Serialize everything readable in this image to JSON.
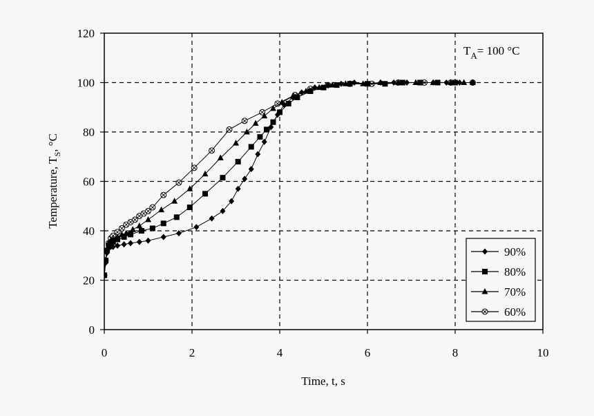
{
  "chart_data": {
    "type": "line",
    "title": "",
    "xlabel": "Time, t, s",
    "ylabel": "Temperature, T",
    "ylabel_sub": "S",
    "ylabel_unit": ", °C",
    "xlim": [
      0,
      10
    ],
    "ylim": [
      0,
      120
    ],
    "xticks": [
      0,
      2,
      4,
      6,
      8,
      10
    ],
    "yticks": [
      0,
      20,
      40,
      60,
      80,
      100,
      120
    ],
    "grid": true,
    "annotation": {
      "main": "T",
      "sub": "A",
      "rest": "= 100 °C"
    },
    "legend_position": "lower right",
    "series": [
      {
        "name": "90%",
        "marker": "diamond",
        "x": [
          0,
          0.03,
          0.06,
          0.1,
          0.15,
          0.2,
          0.3,
          0.45,
          0.6,
          0.8,
          1.0,
          1.35,
          1.7,
          2.1,
          2.45,
          2.7,
          2.9,
          3.05,
          3.2,
          3.35,
          3.5,
          3.65,
          3.8,
          3.95,
          4.1,
          4.3,
          4.5,
          4.8,
          5.1,
          5.4,
          5.7,
          6.0,
          6.3,
          6.6,
          6.9,
          7.2,
          7.5,
          7.8,
          8.1,
          8.4
        ],
        "y": [
          22,
          27,
          31,
          33,
          33.5,
          33.5,
          34,
          34.5,
          35,
          35.5,
          36,
          37.5,
          39,
          41.5,
          45,
          48,
          52,
          57,
          61,
          65,
          71,
          76,
          82,
          87,
          91,
          94,
          96,
          98,
          99,
          99.5,
          100,
          99.5,
          100,
          100,
          100,
          100,
          100,
          100,
          100,
          100
        ]
      },
      {
        "name": "80%",
        "marker": "square",
        "x": [
          0,
          0.03,
          0.06,
          0.1,
          0.15,
          0.2,
          0.3,
          0.45,
          0.6,
          0.85,
          1.1,
          1.35,
          1.65,
          1.95,
          2.3,
          2.7,
          3.05,
          3.35,
          3.55,
          3.7,
          3.85,
          4.0,
          4.2,
          4.4,
          4.7,
          5.0,
          5.3,
          5.6,
          6.0,
          6.4,
          6.8,
          7.2,
          7.6,
          8.0
        ],
        "y": [
          22,
          28,
          32,
          34,
          35,
          35.5,
          36.5,
          37.5,
          38.5,
          40,
          41,
          43,
          45.5,
          49.5,
          55,
          61.5,
          68,
          74,
          78,
          81,
          84,
          88,
          91.5,
          94,
          96.5,
          98,
          99,
          99.5,
          99.5,
          99.5,
          100,
          100,
          100,
          100
        ]
      },
      {
        "name": "70%",
        "marker": "triangle",
        "x": [
          0,
          0.03,
          0.06,
          0.1,
          0.15,
          0.2,
          0.3,
          0.4,
          0.5,
          0.65,
          0.8,
          1.0,
          1.3,
          1.6,
          1.95,
          2.3,
          2.65,
          3.0,
          3.25,
          3.45,
          3.65,
          3.85,
          4.05,
          4.3,
          4.6,
          4.9,
          5.2,
          5.5,
          5.9,
          6.3,
          6.7,
          7.1,
          7.5,
          7.9,
          8.2,
          8.4
        ],
        "y": [
          22,
          28,
          32,
          35,
          36,
          36.5,
          37.5,
          38.5,
          39,
          40.5,
          42,
          44.5,
          48.5,
          52,
          57,
          63,
          69.5,
          75.5,
          80,
          83.5,
          86.5,
          89.5,
          92,
          94.5,
          96.5,
          98,
          99,
          99.5,
          99.5,
          100,
          100,
          100,
          100,
          100,
          100,
          100
        ]
      },
      {
        "name": "60%",
        "marker": "circle-cross",
        "x": [
          0,
          0.03,
          0.06,
          0.1,
          0.15,
          0.2,
          0.3,
          0.4,
          0.5,
          0.6,
          0.7,
          0.8,
          0.9,
          1.0,
          1.1,
          1.35,
          1.7,
          2.05,
          2.45,
          2.85,
          3.2,
          3.6,
          3.95,
          4.35,
          4.7,
          5.1,
          5.6,
          6.1,
          6.7,
          7.3,
          7.9,
          8.4
        ],
        "y": [
          22,
          28,
          32,
          35,
          37,
          38,
          39.5,
          41,
          42.5,
          43.5,
          44.5,
          46,
          47,
          48,
          49.5,
          54.5,
          59.5,
          65.5,
          72.5,
          81,
          84.5,
          88,
          91.5,
          95,
          97.5,
          99,
          99.5,
          99.5,
          100,
          100,
          100,
          100
        ]
      }
    ]
  }
}
